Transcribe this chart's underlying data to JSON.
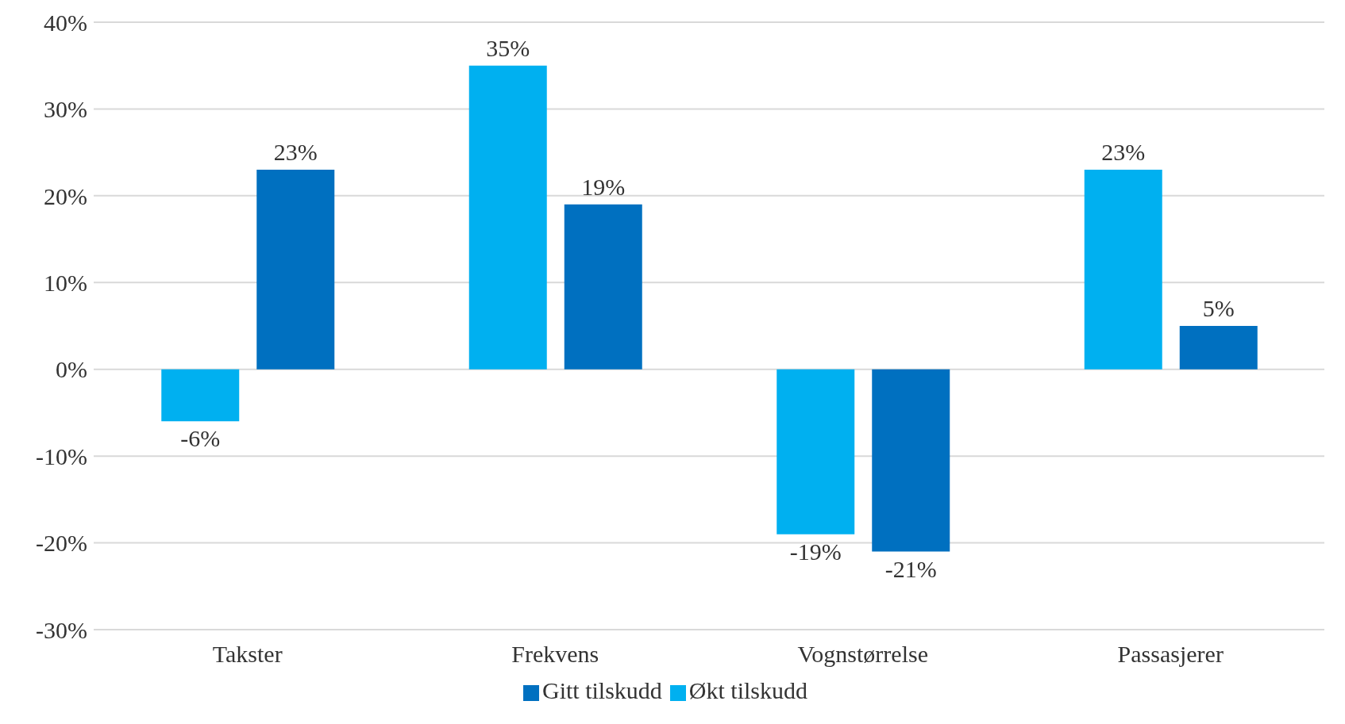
{
  "chart_data": {
    "type": "bar",
    "categories": [
      "Takster",
      "Frekvens",
      "Vognstørrelse",
      "Passasjerer"
    ],
    "series": [
      {
        "name": "Økt tilskudd",
        "color": "#00b0f0",
        "values": [
          -6,
          35,
          -19,
          23
        ],
        "value_labels": [
          "-6%",
          "35%",
          "-19%",
          "23%"
        ]
      },
      {
        "name": "Gitt tilskudd",
        "color": "#0070c0",
        "values": [
          23,
          19,
          -21,
          5
        ],
        "value_labels": [
          "23%",
          "19%",
          "-21%",
          "5%"
        ]
      }
    ],
    "ylim": [
      -30,
      40
    ],
    "yticks": [
      {
        "value": -30,
        "label": "-30%"
      },
      {
        "value": -20,
        "label": "-20%"
      },
      {
        "value": -10,
        "label": "-10%"
      },
      {
        "value": 0,
        "label": "0%"
      },
      {
        "value": 10,
        "label": "10%"
      },
      {
        "value": 20,
        "label": "20%"
      },
      {
        "value": 30,
        "label": "30%"
      },
      {
        "value": 40,
        "label": "40%"
      }
    ],
    "grid": "y",
    "legend": "bottom"
  }
}
